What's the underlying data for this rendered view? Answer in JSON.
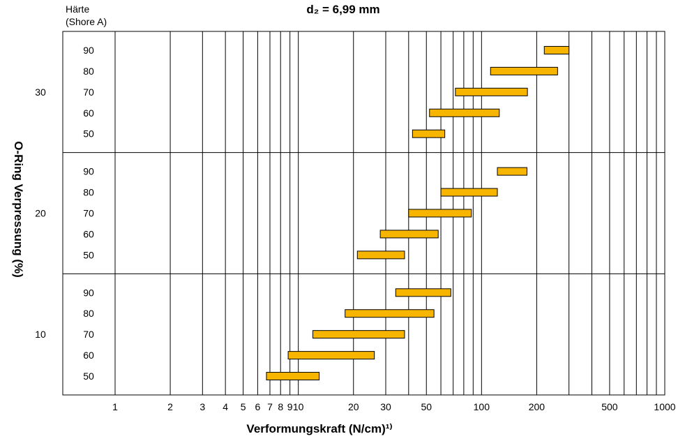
{
  "chart_data": {
    "type": "bar",
    "title": "d₂ = 6,99 mm",
    "xlabel": "Verformungskraft (N/cm)¹⁾",
    "ylabel": "O-Ring Verpressung (%)",
    "hardness_header": [
      "Härte",
      "(Shore A)"
    ],
    "x_scale": "log",
    "xlim": [
      1,
      1000
    ],
    "x_ticks": [
      1,
      2,
      3,
      4,
      5,
      6,
      7,
      8,
      9,
      10,
      20,
      30,
      40,
      50,
      60,
      70,
      80,
      90,
      100,
      200,
      300,
      400,
      500,
      600,
      700,
      800,
      900,
      1000
    ],
    "x_tick_labels": [
      {
        "value": 1,
        "label": "1"
      },
      {
        "value": 2,
        "label": "2"
      },
      {
        "value": 3,
        "label": "3"
      },
      {
        "value": 4,
        "label": "4"
      },
      {
        "value": 5,
        "label": "5"
      },
      {
        "value": 6,
        "label": "6"
      },
      {
        "value": 7,
        "label": "7"
      },
      {
        "value": 8,
        "label": "8"
      },
      {
        "value": 9,
        "label": "9"
      },
      {
        "value": 10,
        "label": "10"
      },
      {
        "value": 20,
        "label": "20"
      },
      {
        "value": 30,
        "label": "30"
      },
      {
        "value": 50,
        "label": "50"
      },
      {
        "value": 100,
        "label": "100"
      },
      {
        "value": 200,
        "label": "200"
      },
      {
        "value": 500,
        "label": "500"
      },
      {
        "value": 1000,
        "label": "1000"
      }
    ],
    "bar_color": "#f7b500",
    "bar_edge_color": "#000000",
    "groups": [
      {
        "compression": "30",
        "bars": [
          {
            "hardness": "90",
            "min": 220,
            "max": 300
          },
          {
            "hardness": "80",
            "min": 112,
            "max": 260
          },
          {
            "hardness": "70",
            "min": 72,
            "max": 178
          },
          {
            "hardness": "60",
            "min": 52,
            "max": 125
          },
          {
            "hardness": "50",
            "min": 42,
            "max": 63
          }
        ]
      },
      {
        "compression": "20",
        "bars": [
          {
            "hardness": "90",
            "min": 122,
            "max": 177
          },
          {
            "hardness": "80",
            "min": 60,
            "max": 122
          },
          {
            "hardness": "70",
            "min": 40,
            "max": 88
          },
          {
            "hardness": "60",
            "min": 28,
            "max": 58
          },
          {
            "hardness": "50",
            "min": 21,
            "max": 38
          }
        ]
      },
      {
        "compression": "10",
        "bars": [
          {
            "hardness": "90",
            "min": 34,
            "max": 68
          },
          {
            "hardness": "80",
            "min": 18,
            "max": 55
          },
          {
            "hardness": "70",
            "min": 12,
            "max": 38
          },
          {
            "hardness": "60",
            "min": 8.8,
            "max": 26
          },
          {
            "hardness": "50",
            "min": 6.7,
            "max": 13
          }
        ]
      }
    ]
  }
}
